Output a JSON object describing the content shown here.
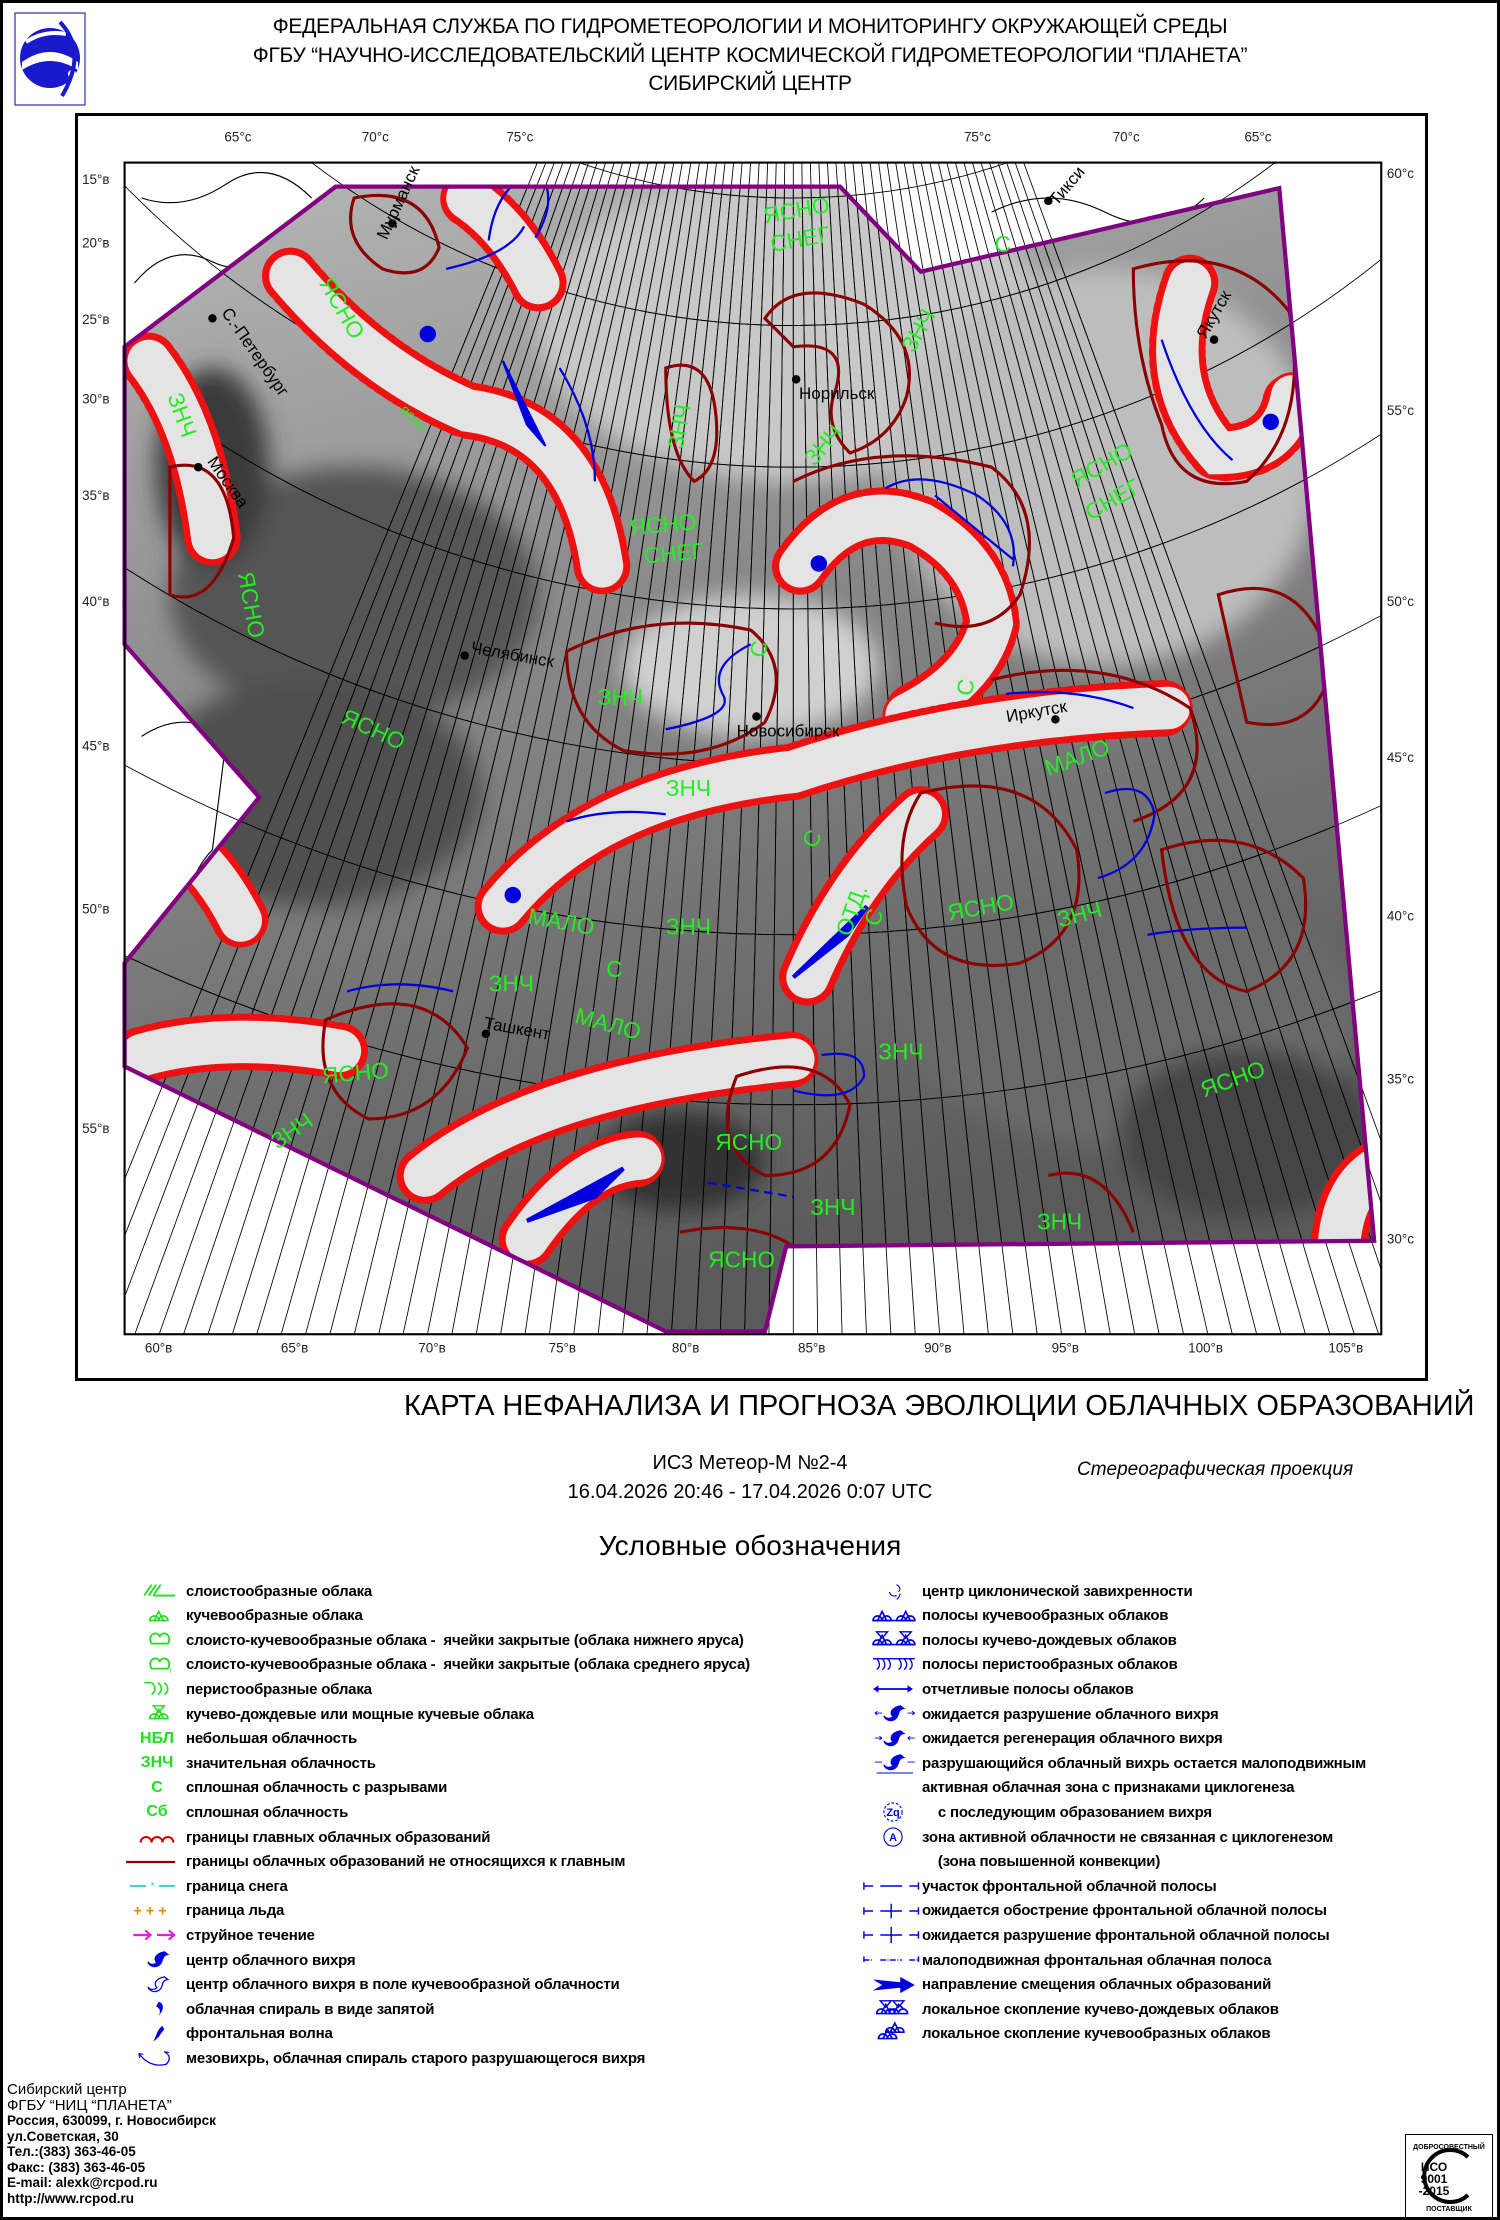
{
  "header": {
    "line1": "ФЕДЕРАЛЬНАЯ СЛУЖБА ПО ГИДРОМЕТЕОРОЛОГИИ И МОНИТОРИНГУ ОКРУЖАЮЩЕЙ СРЕДЫ",
    "line2": "ФГБУ “НАУЧНО-ИССЛЕДОВАТЕЛЬСКИЙ ЦЕНТР КОСМИЧЕСКОЙ ГИДРОМЕТЕОРОЛОГИИ “ПЛАНЕТА”",
    "line3": "СИБИРСКИЙ ЦЕНТР"
  },
  "colors": {
    "boundary_main": "#ee1111",
    "boundary_other": "#8b0000",
    "annotation_green": "#22ee22",
    "symbols_blue": "#0000dd",
    "map_outline": "#800080"
  },
  "map": {
    "top_labels": [
      "65°с",
      "70°с",
      "75°с",
      "75°с",
      "70°с",
      "65°с"
    ],
    "left_labels": [
      "15°в",
      "20°в",
      "25°в",
      "30°в",
      "35°в",
      "40°в",
      "45°в",
      "50°в",
      "55°в"
    ],
    "right_labels": [
      "60°с",
      "55°с",
      "50°с",
      "45°с",
      "40°с",
      "35°с",
      "30°с"
    ],
    "bottom_labels": [
      "60°в",
      "65°в",
      "70°в",
      "75°в",
      "80°в",
      "85°в",
      "90°в",
      "95°в",
      "100°в",
      "105°в"
    ],
    "cities": [
      "Мурманск",
      "С.-Петербург",
      "Москва",
      "Норильск",
      "Челябинск",
      "Новосибирск",
      "Иркутск",
      "Якутск",
      "Тикси",
      "Ташкент"
    ],
    "annotations": [
      "ЯСНО",
      "ЗНЧ",
      "ЯСНО",
      "СНЕГ",
      "С",
      "ЗНЧ",
      "ЗНЧ",
      "ЗНЧ",
      "ЯСНО",
      "СНЕГ",
      "ЯСНО",
      "СНЕГ",
      "ЯСНО",
      "ЗНЧ",
      "С",
      "С",
      "МАЛО",
      "ЗНЧ",
      "ЗНЧ",
      "С",
      "МАЛО",
      "ЗНЧ",
      "ЯСНО",
      "ЗНЧ",
      "ЯСНО",
      "ЗНЧ",
      "ЗНЧ",
      "ЯСНО",
      "ЯСНО",
      "ЗНЧ",
      "ЗНЧ",
      "ЯСНО",
      "ОТД.",
      "ясно",
      "С",
      "С",
      "МАЛО",
      "ЯСНО"
    ]
  },
  "title": "КАРТА НЕФАНАЛИЗА И ПРОГНОЗА ЭВОЛЮЦИИ  ОБЛАЧНЫХ ОБРАЗОВАНИЙ",
  "satellite": "ИСЗ Метеор-М №2-4",
  "period": "16.04.2026 20:46 - 17.04.2026 0:07 UTC",
  "projection": "Стереографическая проекция",
  "legend": {
    "title": "Условные обозначения",
    "left": [
      {
        "icon": "stratiform",
        "label": "слоистообразные облака"
      },
      {
        "icon": "cumulus",
        "label": "кучевообразные облака"
      },
      {
        "icon": "sc-low",
        "label": "слоисто-кучевообразные облака -  ячейки закрытые (облака нижнего яруса)"
      },
      {
        "icon": "sc-mid",
        "label": "слоисто-кучевообразные облака -  ячейки закрытые (облака среднего яруса)"
      },
      {
        "icon": "cirrus",
        "label": "перистообразные облака"
      },
      {
        "icon": "cumulonimbus",
        "label": "кучево-дождевые или мощные кучевые облака"
      },
      {
        "icon": "text",
        "symbol": "НБЛ",
        "label": "небольшая облачность"
      },
      {
        "icon": "text",
        "symbol": "ЗНЧ",
        "label": "значительная облачность"
      },
      {
        "icon": "text",
        "symbol": "С",
        "label": "сплошная облачность с разрывами"
      },
      {
        "icon": "text",
        "symbol": "Сб",
        "label": "сплошная облачность"
      },
      {
        "icon": "scallop",
        "label": "границы главных облачных образований"
      },
      {
        "icon": "line-darkred",
        "label": "границы облачных образований не относящихся к главным"
      },
      {
        "icon": "snow",
        "label": "граница снега"
      },
      {
        "icon": "ice",
        "label": "граница льда"
      },
      {
        "icon": "jet",
        "label": "струйное течение"
      },
      {
        "icon": "vortex",
        "label": "центр облачного вихря"
      },
      {
        "icon": "vortex-outline",
        "label": "центр облачного вихря в поле кучевообразной облачности"
      },
      {
        "icon": "comma",
        "label": "облачная спираль в виде запятой"
      },
      {
        "icon": "frontal-wave",
        "label": "фронтальная волна"
      },
      {
        "icon": "mesovortex",
        "label": "мезовихрь, облачная спираль старого разрушающегося вихря"
      }
    ],
    "right": [
      {
        "icon": "cyclonic",
        "label": "центр циклонической завихренности"
      },
      {
        "icon": "cu-bands",
        "label": "полосы кучевообразных облаков"
      },
      {
        "icon": "cb-bands",
        "label": "полосы кучево-дождевых облаков"
      },
      {
        "icon": "ci-bands",
        "label": "полосы перистообразных облаков"
      },
      {
        "icon": "double-arrow",
        "label": "отчетливые полосы облаков"
      },
      {
        "icon": "vortex-decay",
        "label": "ожидается разрушение облачного вихря"
      },
      {
        "icon": "vortex-regen",
        "label": "ожидается регенерация облачного вихря"
      },
      {
        "icon": "vortex-stationary",
        "label": "разрушающийся облачный вихрь остается малоподвижным"
      },
      {
        "icon": "none",
        "label": "активная облачная зона с признаками циклогенеза"
      },
      {
        "icon": "circle-text",
        "symbol": "Zq",
        "label": "    с последующим образованием вихря"
      },
      {
        "icon": "circle-text",
        "symbol": "A",
        "label": "зона активной облачности не связанная с циклогенезом"
      },
      {
        "icon": "none",
        "label": "    (зона повышенной конвекции)"
      },
      {
        "icon": "front",
        "label": "участок фронтальной облачной полосы"
      },
      {
        "icon": "front-sharpen",
        "label": "ожидается обострение фронтальной облачной полосы"
      },
      {
        "icon": "front-decay",
        "label": "ожидается разрушение фронтальной облачной полосы"
      },
      {
        "icon": "front-stationary",
        "label": "малоподвижная фронтальная облачная полоса"
      },
      {
        "icon": "big-arrow",
        "label": "направление смещения облачных образований"
      },
      {
        "icon": "cb-cluster",
        "label": "локальное скопление кучево-дождевых облаков"
      },
      {
        "icon": "cu-cluster",
        "label": "локальное скопление кучевообразных облаков"
      }
    ]
  },
  "footer": [
    "Сибирский центр",
    "ФГБУ “НИЦ “ПЛАНЕТА”",
    "Россия, 630099, г. Новосибирск",
    "ул.Советская, 30",
    "Тел.:(383) 363-46-05",
    "Факс: (383) 363-46-05",
    "E-mail: alexk@rcpod.ru",
    "http://www.rcpod.ru"
  ],
  "iso_logo": {
    "top": "ДОБРОСОВЕСТНЫЙ",
    "line1": "ИСО",
    "line2": "9001",
    "line3": "-2015",
    "bottom": "ПОСТАВЩИК"
  }
}
